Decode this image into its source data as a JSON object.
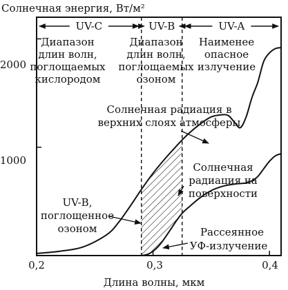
{
  "chart_data": {
    "type": "line",
    "ylabel": "Солнечная энергия, Вт/м²",
    "xlabel": "Длина волны, мкм",
    "xlim": [
      0.2,
      0.41
    ],
    "ylim": [
      0,
      2200
    ],
    "x_ticks": [
      "0,2",
      "0,3",
      "0,4"
    ],
    "y_ticks": [
      "1000",
      "2000"
    ],
    "x_tick_values": [
      0.2,
      0.3,
      0.4
    ],
    "y_tick_values": [
      1000,
      2000
    ],
    "grid": false,
    "regions": [
      {
        "name": "UV-C",
        "from": 0.2,
        "to": 0.29,
        "description": [
          "Диапазон",
          "длин волн,",
          "поглощаемых",
          "кислородом"
        ]
      },
      {
        "name": "UV-B",
        "from": 0.29,
        "to": 0.325,
        "description": [
          "Диапазон",
          "длин волн,",
          "поглощаемых",
          "озоном"
        ]
      },
      {
        "name": "UV-A",
        "from": 0.325,
        "to": 0.41,
        "description": [
          "Наименее",
          "опасное",
          "излучение"
        ]
      }
    ],
    "region_boundaries": [
      0.29,
      0.325
    ],
    "series": [
      {
        "name": "Солнечная радиация в верхних слоях атмосферы",
        "x": [
          0.2,
          0.22,
          0.24,
          0.26,
          0.27,
          0.28,
          0.29,
          0.3,
          0.31,
          0.32,
          0.33,
          0.34,
          0.35,
          0.36,
          0.365,
          0.37,
          0.375,
          0.38,
          0.385,
          0.39,
          0.395,
          0.4,
          0.405,
          0.41
        ],
        "values": [
          20,
          40,
          80,
          190,
          300,
          450,
          610,
          760,
          890,
          1010,
          1120,
          1210,
          1280,
          1300,
          1290,
          1230,
          1180,
          1280,
          1460,
          1600,
          1790,
          1870,
          1910,
          1920
        ]
      },
      {
        "name": "Солнечная радиация на поверхности",
        "x": [
          0.29,
          0.295,
          0.3,
          0.305,
          0.31,
          0.315,
          0.32,
          0.325,
          0.33,
          0.34,
          0.35,
          0.36,
          0.37,
          0.38,
          0.385,
          0.39,
          0.395,
          0.4,
          0.405,
          0.41
        ],
        "values": [
          0,
          10,
          40,
          90,
          160,
          240,
          320,
          390,
          440,
          530,
          600,
          640,
          660,
          670,
          690,
          730,
          800,
          870,
          920,
          940
        ]
      }
    ],
    "annotations": {
      "upper_curve": [
        "Солнечная радиация в",
        "верхних слоях атмосферы"
      ],
      "surface_curve": [
        "Солнечная",
        "радиация на",
        "поверхности"
      ],
      "absorbed": [
        "UV-B,",
        "поглощенное",
        "озоном"
      ],
      "scattered": [
        "Рассеянное",
        "УФ-излучение"
      ]
    }
  }
}
